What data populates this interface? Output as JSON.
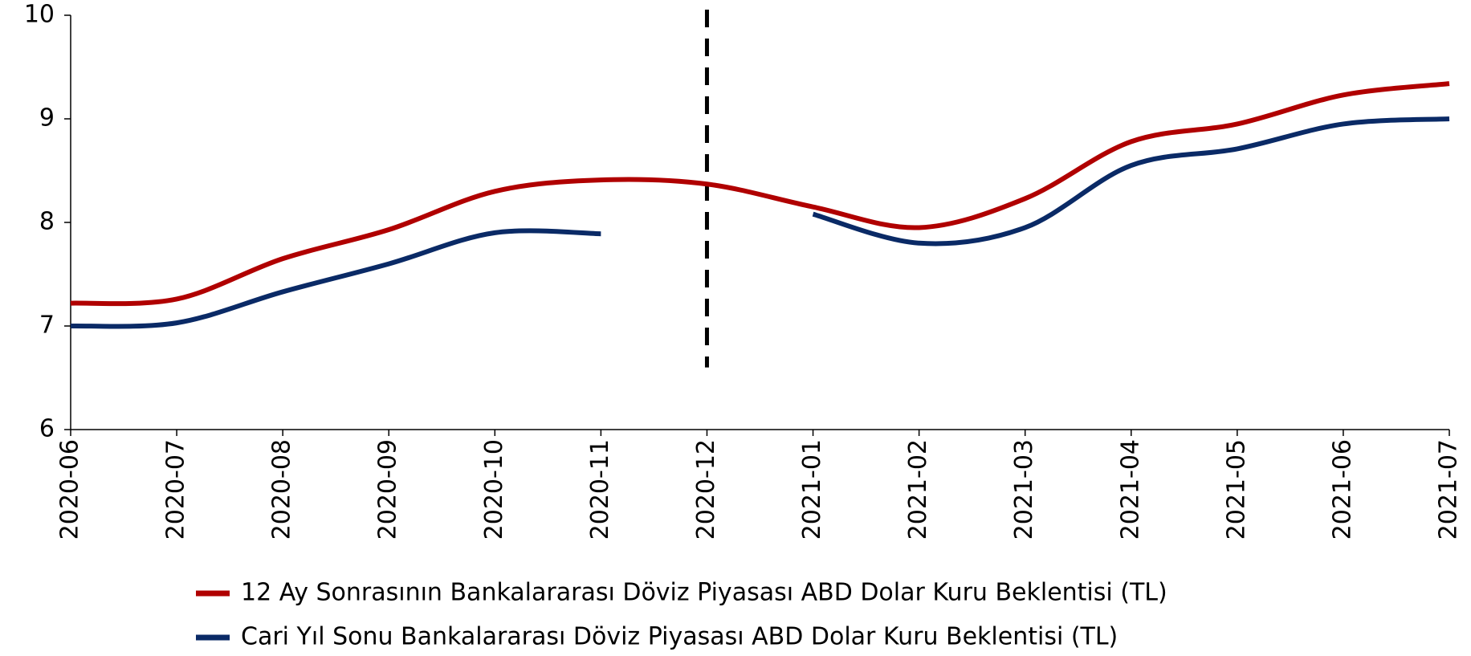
{
  "chart_data": {
    "type": "line",
    "x": [
      "2020-06",
      "2020-07",
      "2020-08",
      "2020-09",
      "2020-10",
      "2020-11",
      "2020-12",
      "2021-01",
      "2021-02",
      "2021-03",
      "2021-04",
      "2021-05",
      "2021-06",
      "2021-07"
    ],
    "series": [
      {
        "name": "12 Ay Sonrasının Bankalararası Döviz Piyasası ABD Dolar Kuru Beklentisi (TL)",
        "color": "#b00000",
        "values": [
          7.22,
          7.26,
          7.65,
          7.93,
          8.3,
          8.41,
          8.37,
          8.15,
          7.95,
          8.23,
          8.78,
          8.95,
          9.23,
          9.34
        ]
      },
      {
        "name": "Cari Yıl Sonu Bankalararası Döviz Piyasası ABD Dolar Kuru Beklentisi (TL)",
        "color": "#0a2a66",
        "values": [
          7.0,
          7.03,
          7.33,
          7.6,
          7.9,
          7.89,
          null,
          8.08,
          7.8,
          7.95,
          8.55,
          8.71,
          8.95,
          9.0
        ]
      }
    ],
    "ylim": [
      6,
      10
    ],
    "yticks": [
      6,
      7,
      8,
      9,
      10
    ],
    "legend": "bottom"
  }
}
